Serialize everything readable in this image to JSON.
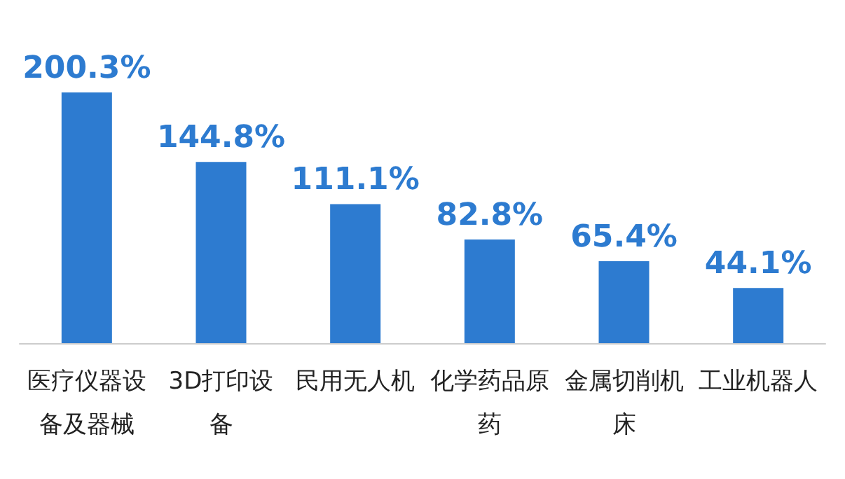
{
  "chart_data": {
    "type": "bar",
    "categories": [
      "医疗仪器设备及器械",
      "3D打印设备",
      "民用无人机",
      "化学药品原药",
      "金属切削机床",
      "工业机器人"
    ],
    "values": [
      200.3,
      144.8,
      111.1,
      82.8,
      65.4,
      44.1
    ],
    "value_labels": [
      "200.3%",
      "144.8%",
      "111.1%",
      "82.8%",
      "65.4%",
      "44.1%"
    ],
    "color": "#2d7bd0"
  }
}
